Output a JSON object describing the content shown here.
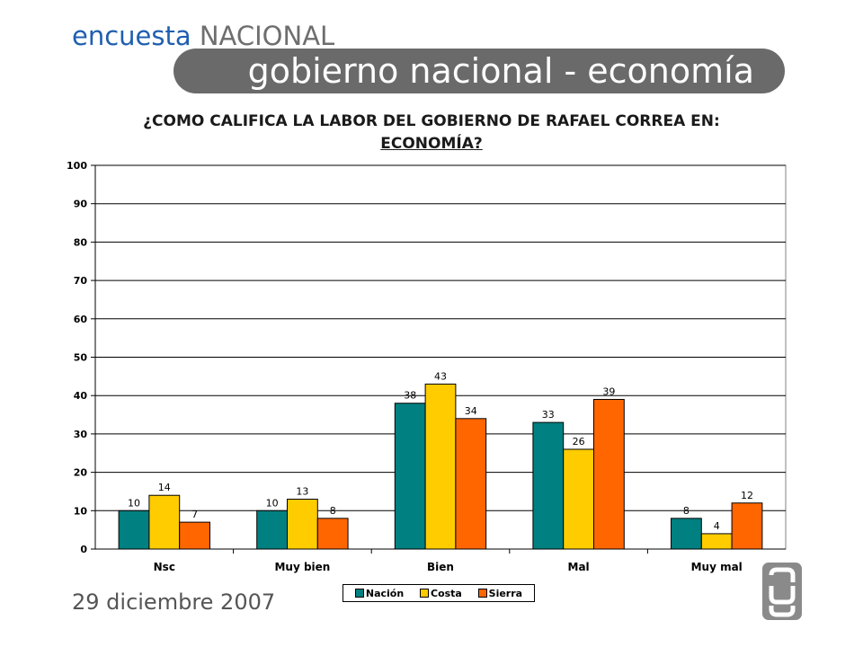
{
  "header": {
    "brand_part1": "encuesta",
    "brand_part2": "NACIONAL",
    "banner_title": "gobierno nacional - economía"
  },
  "question": {
    "line1": "¿COMO CALIFICA LA LABOR DEL GOBIERNO DE RAFAEL CORREA EN:",
    "line2": "ECONOMÍA?"
  },
  "footer": {
    "date": "29 diciembre 2007",
    "logo": "mu-logo-icon"
  },
  "colors": {
    "brand_blue": "#1f5fb0",
    "banner_gray": "#6a6a6a"
  },
  "chart_data": {
    "type": "bar",
    "categories": [
      "Nsc",
      "Muy bien",
      "Bien",
      "Mal",
      "Muy mal"
    ],
    "series": [
      {
        "name": "Nación",
        "values": [
          10,
          10,
          38,
          33,
          8
        ],
        "color": "#008080"
      },
      {
        "name": "Costa",
        "values": [
          14,
          13,
          43,
          26,
          4
        ],
        "color": "#ffcc00"
      },
      {
        "name": "Sierra",
        "values": [
          7,
          8,
          34,
          39,
          12
        ],
        "color": "#ff6600"
      }
    ],
    "ylim": [
      0,
      100
    ],
    "yticks": [
      0,
      10,
      20,
      30,
      40,
      50,
      60,
      70,
      80,
      90,
      100
    ],
    "grid": true,
    "legend_position": "bottom"
  }
}
